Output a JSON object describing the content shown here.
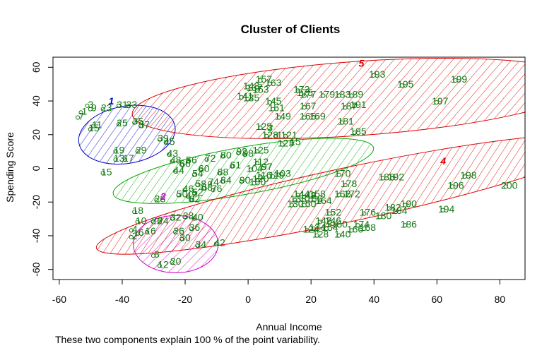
{
  "chart_data": {
    "type": "scatter",
    "title": "Cluster of Clients",
    "xlabel": "Annual Income",
    "ylabel": "Spending Score",
    "caption": "These two components explain 100 % of the point variability.",
    "xlim": [
      -62,
      88
    ],
    "ylim": [
      -66,
      66
    ],
    "xticks": [
      -60,
      -40,
      -20,
      0,
      20,
      40,
      60,
      80
    ],
    "yticks": [
      -60,
      -40,
      -20,
      0,
      20,
      40,
      60
    ],
    "grid": false,
    "point_color": "#137a13",
    "clusters": [
      {
        "name": "1",
        "color": "#0000cc",
        "center": [
          -38.5,
          20
        ],
        "rx": 15.5,
        "ry": 17,
        "angle": 10,
        "label_pos": [
          -43.5,
          40
        ]
      },
      {
        "name": "2",
        "color": "#cc00cc",
        "center": [
          -23,
          -45
        ],
        "rx": 13.5,
        "ry": 17,
        "angle": 0,
        "label_pos": [
          -27,
          -16.5
        ]
      },
      {
        "name": "3",
        "color": "#00aa00",
        "center": [
          -1.5,
          -1.5
        ],
        "rx": 42,
        "ry": 14,
        "angle": 10,
        "label_pos": [
          7,
          24
        ]
      },
      {
        "name": "4",
        "color": "#dd0000",
        "center": [
          32,
          -15.5
        ],
        "rx": 82,
        "ry": 16,
        "angle": 12,
        "label_pos": [
          62,
          4.5
        ]
      },
      {
        "name": "5",
        "color": "#dd0000",
        "center": [
          35,
          41.5
        ],
        "rx": 72,
        "ry": 22,
        "angle": 4,
        "label_pos": [
          36,
          62.5
        ]
      }
    ],
    "points": [
      {
        "label": "1",
        "x": -52,
        "y": 34,
        "cluster": "1"
      },
      {
        "label": "3",
        "x": -50,
        "y": 38,
        "cluster": "1"
      },
      {
        "label": "9",
        "x": -49,
        "y": 36,
        "cluster": "1"
      },
      {
        "label": "7",
        "x": -53,
        "y": 31,
        "cluster": "1"
      },
      {
        "label": "23",
        "x": -45,
        "y": 36,
        "cluster": "1"
      },
      {
        "label": "31",
        "x": -40,
        "y": 38,
        "cluster": "1"
      },
      {
        "label": "33",
        "x": -37,
        "y": 38,
        "cluster": "1"
      },
      {
        "label": "11",
        "x": -48,
        "y": 26,
        "cluster": "1"
      },
      {
        "label": "15",
        "x": -49,
        "y": 24,
        "cluster": "1"
      },
      {
        "label": "25",
        "x": -40,
        "y": 27,
        "cluster": "1"
      },
      {
        "label": "35",
        "x": -35,
        "y": 28,
        "cluster": "1"
      },
      {
        "label": "37",
        "x": -33,
        "y": 26,
        "cluster": "1"
      },
      {
        "label": "39",
        "x": -27,
        "y": 18,
        "cluster": "1"
      },
      {
        "label": "45",
        "x": -25,
        "y": 16,
        "cluster": "1"
      },
      {
        "label": "19",
        "x": -41,
        "y": 11,
        "cluster": "1"
      },
      {
        "label": "29",
        "x": -34,
        "y": 11,
        "cluster": "1"
      },
      {
        "label": "13",
        "x": -41,
        "y": 6,
        "cluster": "1"
      },
      {
        "label": "17",
        "x": -38,
        "y": 6,
        "cluster": "1"
      },
      {
        "label": "43",
        "x": -24,
        "y": 9,
        "cluster": "1"
      },
      {
        "label": "15",
        "x": -45,
        "y": -2,
        "cluster": "1"
      },
      {
        "label": "28",
        "x": -28,
        "y": -18,
        "cluster": "2"
      },
      {
        "label": "18",
        "x": -35,
        "y": -25,
        "cluster": "2"
      },
      {
        "label": "32",
        "x": -23,
        "y": -29,
        "cluster": "2"
      },
      {
        "label": "38",
        "x": -19,
        "y": -28,
        "cluster": "2"
      },
      {
        "label": "40",
        "x": -16,
        "y": -29,
        "cluster": "2"
      },
      {
        "label": "10",
        "x": -34,
        "y": -31,
        "cluster": "2"
      },
      {
        "label": "22",
        "x": -29,
        "y": -31,
        "cluster": "2"
      },
      {
        "label": "24",
        "x": -27,
        "y": -31,
        "cluster": "2"
      },
      {
        "label": "4",
        "x": -36,
        "y": -36,
        "cluster": "2"
      },
      {
        "label": "6",
        "x": -34,
        "y": -38,
        "cluster": "2"
      },
      {
        "label": "16",
        "x": -31,
        "y": -37,
        "cluster": "2"
      },
      {
        "label": "36",
        "x": -17,
        "y": -35,
        "cluster": "2"
      },
      {
        "label": "26",
        "x": -22,
        "y": -37,
        "cluster": "2"
      },
      {
        "label": "30",
        "x": -20,
        "y": -41,
        "cluster": "2"
      },
      {
        "label": "2",
        "x": -36,
        "y": -40,
        "cluster": "2"
      },
      {
        "label": "34",
        "x": -15,
        "y": -45,
        "cluster": "2"
      },
      {
        "label": "42",
        "x": -9,
        "y": -44,
        "cluster": "2"
      },
      {
        "label": "8",
        "x": -29,
        "y": -51,
        "cluster": "2"
      },
      {
        "label": "20",
        "x": -23,
        "y": -55,
        "cluster": "2"
      },
      {
        "label": "12",
        "x": -27,
        "y": -57,
        "cluster": "2"
      },
      {
        "label": "125",
        "x": 5,
        "y": 25,
        "cluster": "3"
      },
      {
        "label": "128",
        "x": 7,
        "y": 20,
        "cluster": "3"
      },
      {
        "label": "1",
        "x": 10,
        "y": 20,
        "cluster": "3"
      },
      {
        "label": "121",
        "x": 13,
        "y": 20,
        "cluster": "3"
      },
      {
        "label": "123",
        "x": 12,
        "y": 15,
        "cluster": "3"
      },
      {
        "label": "15",
        "x": 15,
        "y": 16,
        "cluster": "3"
      },
      {
        "label": "125",
        "x": 4,
        "y": 11,
        "cluster": "3"
      },
      {
        "label": "80",
        "x": -7,
        "y": 8,
        "cluster": "3"
      },
      {
        "label": "72",
        "x": -12,
        "y": 6,
        "cluster": "3"
      },
      {
        "label": "56",
        "x": -18,
        "y": 5,
        "cluster": "3"
      },
      {
        "label": "66",
        "x": -20,
        "y": 3,
        "cluster": "3"
      },
      {
        "label": "48",
        "x": -23,
        "y": 5,
        "cluster": "3"
      },
      {
        "label": "98",
        "x": 0,
        "y": 9,
        "cluster": "3"
      },
      {
        "label": "92",
        "x": -2,
        "y": 10,
        "cluster": "3"
      },
      {
        "label": "61",
        "x": -4,
        "y": 2,
        "cluster": "3"
      },
      {
        "label": "44",
        "x": -22,
        "y": -1,
        "cluster": "3"
      },
      {
        "label": "60",
        "x": -14,
        "y": 0,
        "cluster": "3"
      },
      {
        "label": "54",
        "x": -16,
        "y": -3,
        "cluster": "3"
      },
      {
        "label": "88",
        "x": -8,
        "y": -2,
        "cluster": "3"
      },
      {
        "label": "104",
        "x": 2,
        "y": 0,
        "cluster": "3"
      },
      {
        "label": "112",
        "x": 4,
        "y": 4,
        "cluster": "3"
      },
      {
        "label": "97",
        "x": 6,
        "y": 1,
        "cluster": "3"
      },
      {
        "label": "116",
        "x": 5,
        "y": -4,
        "cluster": "3"
      },
      {
        "label": "119",
        "x": 9,
        "y": -4,
        "cluster": "3"
      },
      {
        "label": "103",
        "x": 11,
        "y": -3,
        "cluster": "3"
      },
      {
        "label": "120",
        "x": 4,
        "y": -6,
        "cluster": "3"
      },
      {
        "label": "58",
        "x": -15,
        "y": -9,
        "cluster": "3"
      },
      {
        "label": "74",
        "x": -11,
        "y": -8,
        "cluster": "3"
      },
      {
        "label": "84",
        "x": -7,
        "y": -7,
        "cluster": "3"
      },
      {
        "label": "90",
        "x": -1,
        "y": -7,
        "cluster": "3"
      },
      {
        "label": "100",
        "x": 3,
        "y": -8,
        "cluster": "3"
      },
      {
        "label": "46",
        "x": -19,
        "y": -12,
        "cluster": "3"
      },
      {
        "label": "52",
        "x": -16,
        "y": -14,
        "cluster": "3"
      },
      {
        "label": "68",
        "x": -13,
        "y": -11,
        "cluster": "3"
      },
      {
        "label": "76",
        "x": -10,
        "y": -12,
        "cluster": "3"
      },
      {
        "label": "50",
        "x": -21,
        "y": -15,
        "cluster": "3"
      },
      {
        "label": "47",
        "x": -18,
        "y": -16,
        "cluster": "3"
      },
      {
        "label": "62",
        "x": -17,
        "y": -18,
        "cluster": "3"
      },
      {
        "label": "157",
        "x": 5,
        "y": 53,
        "cluster": "5"
      },
      {
        "label": "163",
        "x": 8,
        "y": 51,
        "cluster": "5"
      },
      {
        "label": "143",
        "x": 1,
        "y": 49,
        "cluster": "5"
      },
      {
        "label": "137",
        "x": 2,
        "y": 48,
        "cluster": "5"
      },
      {
        "label": "153",
        "x": 4,
        "y": 47,
        "cluster": "5"
      },
      {
        "label": "141",
        "x": -1,
        "y": 43,
        "cluster": "5"
      },
      {
        "label": "135",
        "x": 1,
        "y": 42,
        "cluster": "5"
      },
      {
        "label": "145",
        "x": 8,
        "y": 40,
        "cluster": "5"
      },
      {
        "label": "151",
        "x": 9,
        "y": 36,
        "cluster": "5"
      },
      {
        "label": "149",
        "x": 11,
        "y": 31,
        "cluster": "5"
      },
      {
        "label": "173",
        "x": 17,
        "y": 47,
        "cluster": "5"
      },
      {
        "label": "177",
        "x": 19,
        "y": 44,
        "cluster": "5"
      },
      {
        "label": "175",
        "x": 18,
        "y": 45,
        "cluster": "5"
      },
      {
        "label": "179",
        "x": 25,
        "y": 44,
        "cluster": "5"
      },
      {
        "label": "183",
        "x": 30,
        "y": 44,
        "cluster": "5"
      },
      {
        "label": "189",
        "x": 34,
        "y": 44,
        "cluster": "5"
      },
      {
        "label": "167",
        "x": 19,
        "y": 37,
        "cluster": "5"
      },
      {
        "label": "187",
        "x": 32,
        "y": 37,
        "cluster": "5"
      },
      {
        "label": "191",
        "x": 35,
        "y": 38,
        "cluster": "5"
      },
      {
        "label": "165",
        "x": 19,
        "y": 31,
        "cluster": "5"
      },
      {
        "label": "169",
        "x": 22,
        "y": 31,
        "cluster": "5"
      },
      {
        "label": "181",
        "x": 31,
        "y": 28,
        "cluster": "5"
      },
      {
        "label": "185",
        "x": 35,
        "y": 22,
        "cluster": "5"
      },
      {
        "label": "193",
        "x": 41,
        "y": 56,
        "cluster": "5"
      },
      {
        "label": "195",
        "x": 50,
        "y": 50,
        "cluster": "5"
      },
      {
        "label": "199",
        "x": 67,
        "y": 53,
        "cluster": "5"
      },
      {
        "label": "197",
        "x": 61,
        "y": 40,
        "cluster": "5"
      },
      {
        "label": "170",
        "x": 30,
        "y": -3,
        "cluster": "4"
      },
      {
        "label": "178",
        "x": 32,
        "y": -9,
        "cluster": "4"
      },
      {
        "label": "188",
        "x": 44,
        "y": -5,
        "cluster": "4"
      },
      {
        "label": "192",
        "x": 47,
        "y": -5,
        "cluster": "4"
      },
      {
        "label": "198",
        "x": 70,
        "y": -4,
        "cluster": "4"
      },
      {
        "label": "196",
        "x": 66,
        "y": -10,
        "cluster": "4"
      },
      {
        "label": "200",
        "x": 83,
        "y": -10,
        "cluster": "4"
      },
      {
        "label": "144",
        "x": 17,
        "y": -15,
        "cluster": "4"
      },
      {
        "label": "148",
        "x": 19,
        "y": -16,
        "cluster": "4"
      },
      {
        "label": "158",
        "x": 22,
        "y": -15,
        "cluster": "4"
      },
      {
        "label": "162",
        "x": 30,
        "y": -15,
        "cluster": "4"
      },
      {
        "label": "172",
        "x": 33,
        "y": -15,
        "cluster": "4"
      },
      {
        "label": "138",
        "x": 16,
        "y": -18,
        "cluster": "4"
      },
      {
        "label": "156",
        "x": 21,
        "y": -18,
        "cluster": "4"
      },
      {
        "label": "164",
        "x": 24,
        "y": -19,
        "cluster": "4"
      },
      {
        "label": "130",
        "x": 15,
        "y": -21,
        "cluster": "4"
      },
      {
        "label": "150",
        "x": 19,
        "y": -21,
        "cluster": "4"
      },
      {
        "label": "182",
        "x": 46,
        "y": -23,
        "cluster": "4"
      },
      {
        "label": "190",
        "x": 51,
        "y": -21,
        "cluster": "4"
      },
      {
        "label": "184",
        "x": 48,
        "y": -25,
        "cluster": "4"
      },
      {
        "label": "194",
        "x": 63,
        "y": -24,
        "cluster": "4"
      },
      {
        "label": "152",
        "x": 27,
        "y": -26,
        "cluster": "4"
      },
      {
        "label": "176",
        "x": 38,
        "y": -26,
        "cluster": "4"
      },
      {
        "label": "180",
        "x": 43,
        "y": -28,
        "cluster": "4"
      },
      {
        "label": "142",
        "x": 24,
        "y": -31,
        "cluster": "4"
      },
      {
        "label": "146",
        "x": 27,
        "y": -31,
        "cluster": "4"
      },
      {
        "label": "160",
        "x": 29,
        "y": -33,
        "cluster": "4"
      },
      {
        "label": "154",
        "x": 26,
        "y": -35,
        "cluster": "4"
      },
      {
        "label": "174",
        "x": 36,
        "y": -33,
        "cluster": "4"
      },
      {
        "label": "186",
        "x": 51,
        "y": -33,
        "cluster": "4"
      },
      {
        "label": "134",
        "x": 22,
        "y": -35,
        "cluster": "4"
      },
      {
        "label": "166",
        "x": 34,
        "y": -36,
        "cluster": "4"
      },
      {
        "label": "168",
        "x": 38,
        "y": -35,
        "cluster": "4"
      },
      {
        "label": "124",
        "x": 20,
        "y": -36,
        "cluster": "4"
      },
      {
        "label": "128",
        "x": 23,
        "y": -39,
        "cluster": "4"
      },
      {
        "label": "140",
        "x": 30,
        "y": -39,
        "cluster": "4"
      }
    ]
  }
}
